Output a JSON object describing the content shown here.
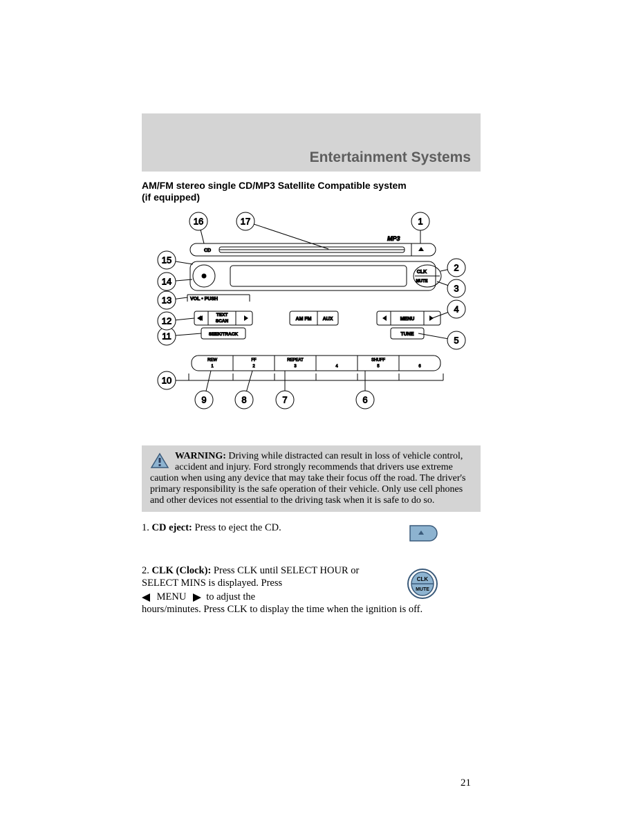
{
  "header": {
    "title": "Entertainment Systems"
  },
  "subtitle": {
    "line1": "AM/FM stereo single CD/MP3 Satellite Compatible system",
    "line2": "(if equipped)"
  },
  "diagram": {
    "mp3": "MP3",
    "cd": "CD",
    "volpush": "VOL • PUSH",
    "clk": "CLK",
    "mute": "MUTE",
    "text": "TEXT",
    "scan": "SCAN",
    "seektrack": "SEEK/TRACK",
    "amfm": "AM FM",
    "aux": "AUX",
    "menu": "MENU",
    "tune": "TUNE",
    "preset_labels": [
      "REW",
      "FF",
      "REPEAT",
      "",
      "SHUFF",
      ""
    ],
    "preset_nums": [
      "1",
      "2",
      "3",
      "4",
      "5",
      "6"
    ],
    "callouts": [
      "1",
      "2",
      "3",
      "4",
      "5",
      "6",
      "7",
      "8",
      "9",
      "10",
      "11",
      "12",
      "13",
      "14",
      "15",
      "16",
      "17"
    ],
    "colors": {
      "stroke": "#000000",
      "fill_none": "none",
      "bg": "#ffffff"
    }
  },
  "warning": {
    "label": "WARNING:",
    "text": " Driving while distracted can result in loss of vehicle control, accident and injury. Ford strongly recommends that drivers use extreme caution when using any device that may take their focus off the road. The driver's primary responsibility is the safe operation of their vehicle. Only use cell phones and other devices not essential to the driving task when it is safe to do so.",
    "icon": {
      "bg": "#8db3d0",
      "border": "#3a5a7a",
      "mark": "#2a3a5a"
    }
  },
  "items": [
    {
      "num": "1. ",
      "label": "CD eject:",
      "text": " Press to eject the CD.",
      "icon": {
        "type": "eject",
        "bg": "#8db3d0",
        "border": "#3a5a7a"
      }
    },
    {
      "num": "2. ",
      "label": "CLK (Clock):",
      "text_a": " Press CLK until SELECT HOUR or SELECT MINS is displayed. Press",
      "menu_word": "MENU",
      "text_b": "to adjust the",
      "text_c": "hours/minutes. Press CLK to display the time when the ignition is off.",
      "icon": {
        "type": "clkmute",
        "bg": "#8db3d0",
        "border": "#3a5a7a",
        "clk": "CLK",
        "mute": "MUTE"
      }
    }
  ],
  "page_number": "21"
}
